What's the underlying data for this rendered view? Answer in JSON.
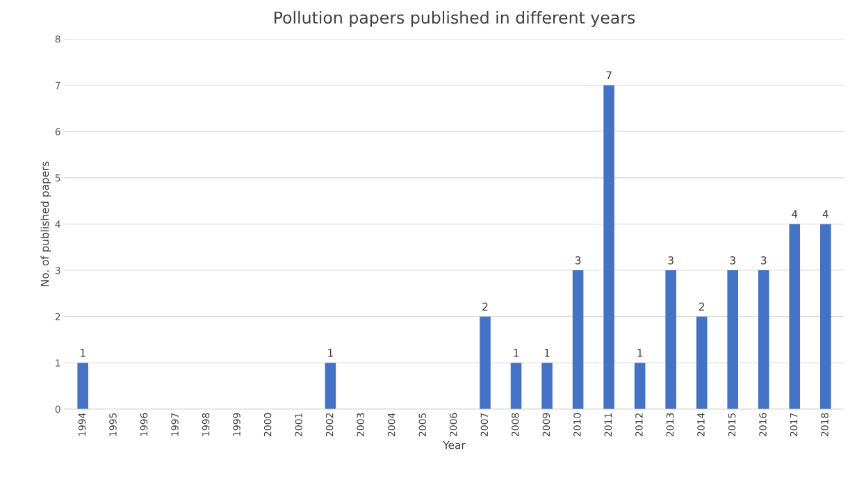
{
  "chart_data": {
    "type": "bar",
    "title": "Pollution papers published in different years",
    "xlabel": "Year",
    "ylabel": "No. of published papers",
    "categories": [
      "1994",
      "1995",
      "1996",
      "1997",
      "1998",
      "1999",
      "2000",
      "2001",
      "2002",
      "2003",
      "2004",
      "2005",
      "2006",
      "2007",
      "2008",
      "2009",
      "2010",
      "2011",
      "2012",
      "2013",
      "2014",
      "2015",
      "2016",
      "2017",
      "2018"
    ],
    "values": [
      1,
      0,
      0,
      0,
      0,
      0,
      0,
      0,
      1,
      0,
      0,
      0,
      0,
      2,
      1,
      1,
      3,
      7,
      1,
      3,
      2,
      3,
      3,
      4,
      4
    ],
    "value_labels": [
      "1",
      null,
      null,
      null,
      null,
      null,
      null,
      null,
      "1",
      null,
      null,
      null,
      null,
      "2",
      "1",
      "1",
      "3",
      "7",
      "1",
      "3",
      "2",
      "3",
      "3",
      "4",
      "4"
    ],
    "color": "#4472c4",
    "ylim": [
      0,
      8
    ],
    "yticks": [
      0,
      1,
      2,
      3,
      4,
      5,
      6,
      7,
      8
    ],
    "grid": "y"
  }
}
